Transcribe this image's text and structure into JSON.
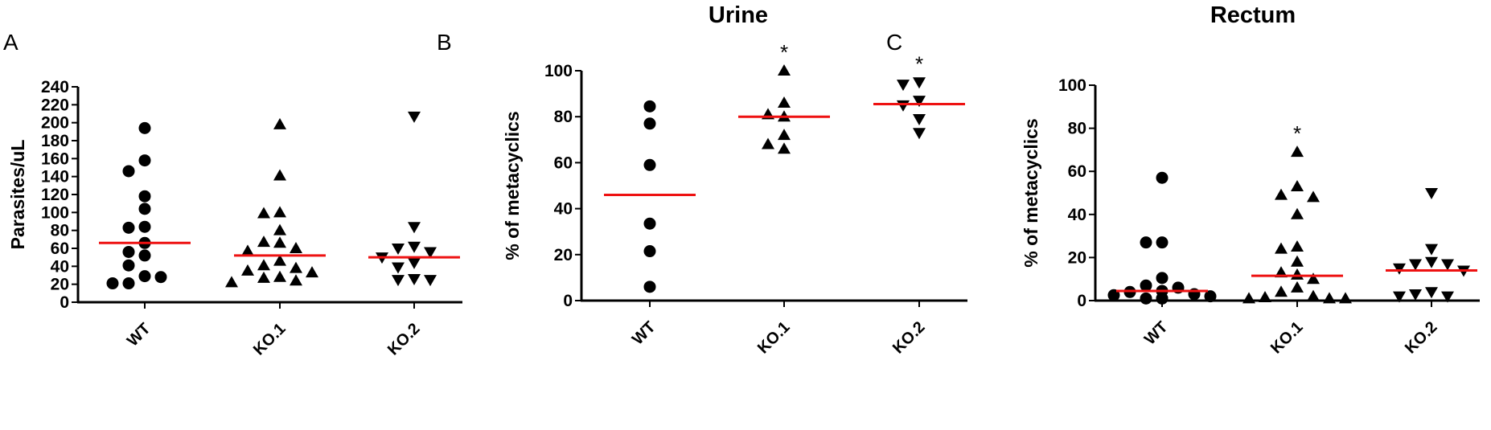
{
  "chart_data": [
    {
      "type": "scatter",
      "panel_label": "A",
      "title": "",
      "ylabel": "Parasites/uL",
      "ylim": [
        0,
        240
      ],
      "yticks": [
        0,
        20,
        40,
        60,
        80,
        100,
        120,
        140,
        160,
        180,
        200,
        220,
        240
      ],
      "categories": [
        "WT",
        "KO.1",
        "KO.2"
      ],
      "markers": [
        "circle",
        "triangle-up",
        "triangle-down"
      ],
      "mean_line_color": "#ee1111",
      "series": [
        {
          "category": "WT",
          "values": [
            194,
            158,
            146,
            118,
            104,
            84,
            83,
            66,
            56,
            52,
            41,
            29,
            28,
            21,
            21
          ],
          "mean": 66,
          "significance": ""
        },
        {
          "category": "KO.1",
          "values": [
            198,
            141,
            100,
            99,
            80,
            67,
            66,
            60,
            57,
            46,
            41,
            38,
            35,
            33,
            28,
            27,
            24,
            22
          ],
          "mean": 52,
          "significance": ""
        },
        {
          "category": "KO.2",
          "values": [
            207,
            84,
            62,
            60,
            56,
            50,
            44,
            39,
            26,
            25,
            25
          ],
          "mean": 50,
          "significance": ""
        }
      ]
    },
    {
      "type": "scatter",
      "panel_label": "B",
      "title": "Urine",
      "ylabel": "% of metacyclics",
      "ylim": [
        0,
        100
      ],
      "yticks": [
        0,
        20,
        40,
        60,
        80,
        100
      ],
      "categories": [
        "WT",
        "KO.1",
        "KO.2"
      ],
      "markers": [
        "circle",
        "triangle-up",
        "triangle-down"
      ],
      "mean_line_color": "#ee1111",
      "series": [
        {
          "category": "WT",
          "values": [
            84.5,
            77,
            59,
            33.5,
            21.5,
            6
          ],
          "mean": 46,
          "significance": ""
        },
        {
          "category": "KO.1",
          "values": [
            100,
            86,
            81,
            80,
            72,
            68,
            66
          ],
          "mean": 80,
          "significance": "*"
        },
        {
          "category": "KO.2",
          "values": [
            95,
            94,
            87,
            85,
            79,
            73
          ],
          "mean": 85.5,
          "significance": "*"
        }
      ]
    },
    {
      "type": "scatter",
      "panel_label": "C",
      "title": "Rectum",
      "ylabel": "% of metacyclics",
      "ylim": [
        0,
        100
      ],
      "yticks": [
        0,
        20,
        40,
        60,
        80,
        100
      ],
      "categories": [
        "WT",
        "KO.1",
        "KO.2"
      ],
      "markers": [
        "circle",
        "triangle-up",
        "triangle-down"
      ],
      "mean_line_color": "#ee1111",
      "series": [
        {
          "category": "WT",
          "values": [
            57,
            27,
            27,
            10.5,
            7,
            6,
            4.5,
            4,
            3,
            2.5,
            2,
            1,
            1,
            1
          ],
          "mean": 4.5,
          "significance": ""
        },
        {
          "category": "KO.1",
          "values": [
            69,
            53,
            49,
            48,
            40,
            25,
            24,
            18,
            13,
            12,
            10,
            6,
            4,
            2,
            1.5,
            1,
            1,
            1
          ],
          "mean": 11.5,
          "significance": "*"
        },
        {
          "category": "KO.2",
          "values": [
            50,
            24,
            18,
            17,
            17,
            15,
            14,
            4,
            3,
            2,
            2
          ],
          "mean": 14,
          "significance": ""
        }
      ]
    }
  ]
}
